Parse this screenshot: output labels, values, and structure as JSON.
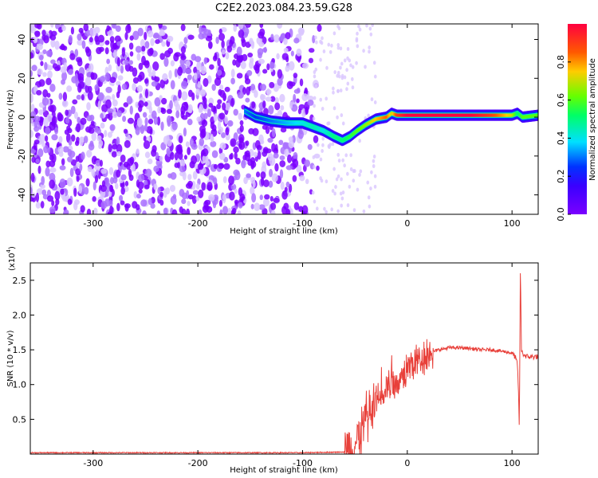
{
  "title": "C2E2.2023.084.23.59.G28",
  "colors": {
    "line": "#e8403a",
    "background": "#ffffff",
    "spec_low": "#7a00ff",
    "spec_mid_blue": "#1e2bff",
    "spec_mid_cyan": "#00e0ff",
    "spec_mid_green": "#33ff00",
    "spec_high": "#ff0040"
  },
  "colorbar": {
    "label": "Normalized spectral amplitude",
    "ticks": [
      "0.0",
      "0.2",
      "0.4",
      "0.6",
      "0.8"
    ],
    "range": [
      0,
      1
    ]
  },
  "chart_data": [
    {
      "type": "heatmap",
      "xlabel": "Height of straight line (km)",
      "ylabel": "Frequency (Hz)",
      "xlim": [
        -360,
        125
      ],
      "ylim": [
        -50,
        48
      ],
      "x_ticks": [
        "-300",
        "-200",
        "-100",
        "0",
        "100"
      ],
      "y_ticks": [
        "40",
        "20",
        "0",
        "-20",
        "-40"
      ],
      "signal_track": {
        "x": [
          -155,
          -145,
          -130,
          -115,
          -100,
          -90,
          -80,
          -70,
          -62,
          -55,
          -48,
          -40,
          -30,
          -20,
          -15,
          -10,
          0,
          10,
          20,
          40,
          60,
          80,
          90,
          100,
          105,
          110,
          125
        ],
        "y": [
          3,
          0,
          -2,
          -3,
          -3,
          -5,
          -7,
          -10,
          -12,
          -10,
          -7,
          -4,
          -1,
          0,
          2,
          1,
          1,
          1,
          1,
          1,
          1,
          1,
          1,
          1,
          2,
          0,
          1
        ],
        "amplitude": [
          0.3,
          0.25,
          0.3,
          0.35,
          0.4,
          0.45,
          0.4,
          0.5,
          0.5,
          0.55,
          0.6,
          0.65,
          0.75,
          0.85,
          0.7,
          0.9,
          1.0,
          1.0,
          1.0,
          1.0,
          1.0,
          0.9,
          0.8,
          0.7,
          0.5,
          0.6,
          0.6
        ]
      },
      "noise_region_x": [
        -360,
        -90
      ]
    },
    {
      "type": "line",
      "xlabel": "Height of straight line (km)",
      "ylabel": "SNR (10 * v/v)",
      "ylabel_scale": "(x10",
      "ylabel_scale_exp": "4",
      "ylabel_scale_close": ")",
      "xlim": [
        -360,
        125
      ],
      "ylim": [
        0,
        2.75
      ],
      "x_ticks": [
        "-300",
        "-200",
        "-100",
        "0",
        "100"
      ],
      "y_ticks": [
        "0.5",
        "1.0",
        "1.5",
        "2.0",
        "2.5"
      ],
      "series": [
        {
          "x": [
            -360,
            -100,
            -60,
            -52,
            -48,
            -44,
            -40,
            -36,
            -33,
            -30,
            -27,
            -24,
            -20,
            -15,
            -10,
            -5,
            0,
            5,
            10,
            15,
            20,
            30,
            40,
            50,
            60,
            70,
            80,
            90,
            95,
            100,
            103,
            105,
            106,
            107,
            108,
            109,
            110,
            112,
            115,
            120,
            125
          ],
          "y": [
            0.02,
            0.02,
            0.03,
            0.08,
            0.2,
            0.32,
            0.45,
            0.55,
            0.6,
            0.7,
            0.75,
            0.85,
            0.95,
            1.0,
            1.05,
            1.15,
            1.25,
            1.3,
            1.35,
            1.4,
            1.45,
            1.5,
            1.53,
            1.53,
            1.52,
            1.5,
            1.5,
            1.48,
            1.47,
            1.45,
            1.4,
            1.3,
            1.0,
            0.35,
            2.7,
            1.5,
            1.45,
            1.42,
            1.4,
            1.4,
            1.4
          ]
        }
      ]
    }
  ]
}
